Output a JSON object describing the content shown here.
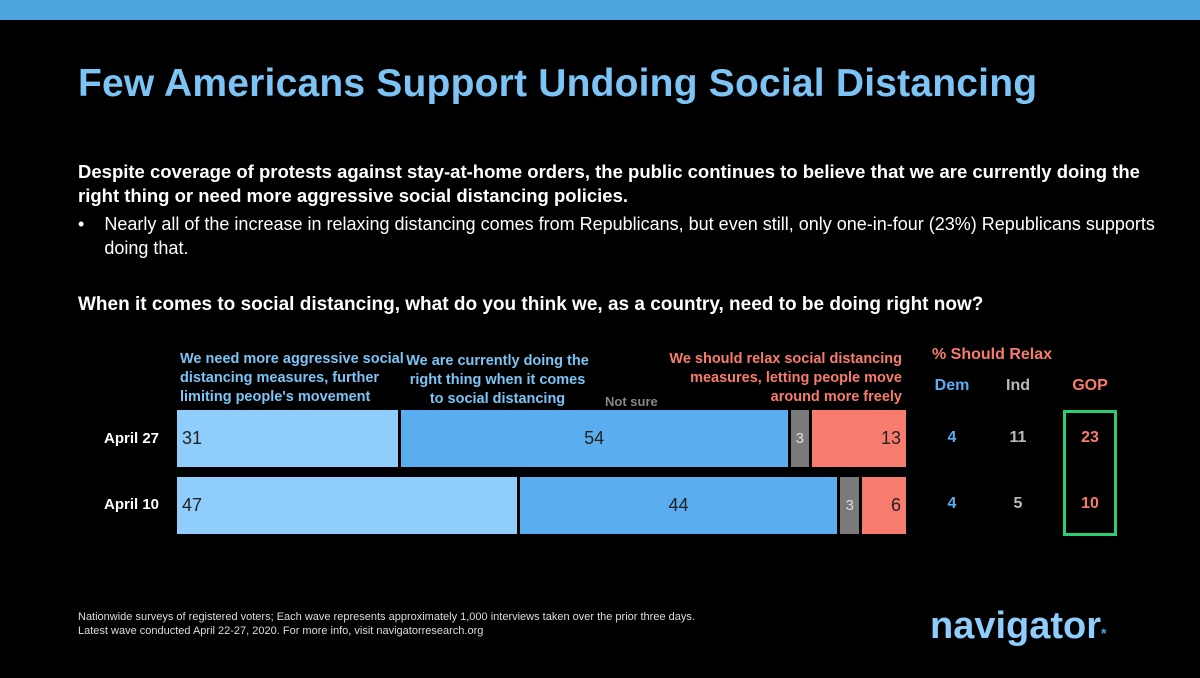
{
  "title": "Few Americans Support Undoing Social Distancing",
  "lead": "Despite coverage of protests against stay-at-home orders, the public continues to believe that we are currently doing the right thing or need more aggressive social distancing policies.",
  "bullet": "Nearly all of the increase in relaxing distancing comes from Republicans, but even still, only one-in-four (23%) Republicans supports doing that.",
  "bullet_marker": "•",
  "question": "When it comes to social distancing, what do you think we, as a country, need to be doing right now?",
  "footnote": [
    "Nationwide surveys of registered voters; Each wave represents approximately 1,000 interviews taken over the prior three days.",
    "Latest wave conducted April 22-27, 2020. For more info, visit navigatorresearch.org"
  ],
  "logo": "navigator",
  "chart_data": {
    "type": "bar",
    "stacked": true,
    "categories": [
      "April 27",
      "April 10"
    ],
    "series": [
      {
        "name": "We need more aggressive social distancing measures, further limiting people's movement",
        "values": [
          31,
          47
        ],
        "color": "#8ecdfc"
      },
      {
        "name": "We are currently doing the right thing when it comes to social distancing",
        "values": [
          54,
          44
        ],
        "color": "#5aaef0"
      },
      {
        "name": "Not sure",
        "values": [
          3,
          3
        ],
        "color": "#7a7a7a"
      },
      {
        "name": "We should relax social distancing measures, letting people move around more freely",
        "values": [
          13,
          6
        ],
        "color": "#f87c6e"
      }
    ],
    "side_table": {
      "title": "% Should Relax",
      "columns": [
        "Dem",
        "Ind",
        "GOP"
      ],
      "rows": [
        [
          4,
          11,
          23
        ],
        [
          4,
          5,
          10
        ]
      ],
      "colors": [
        "#5aaef0",
        "#bbbbbb",
        "#f87c6e"
      ],
      "highlight": "GOP"
    }
  }
}
